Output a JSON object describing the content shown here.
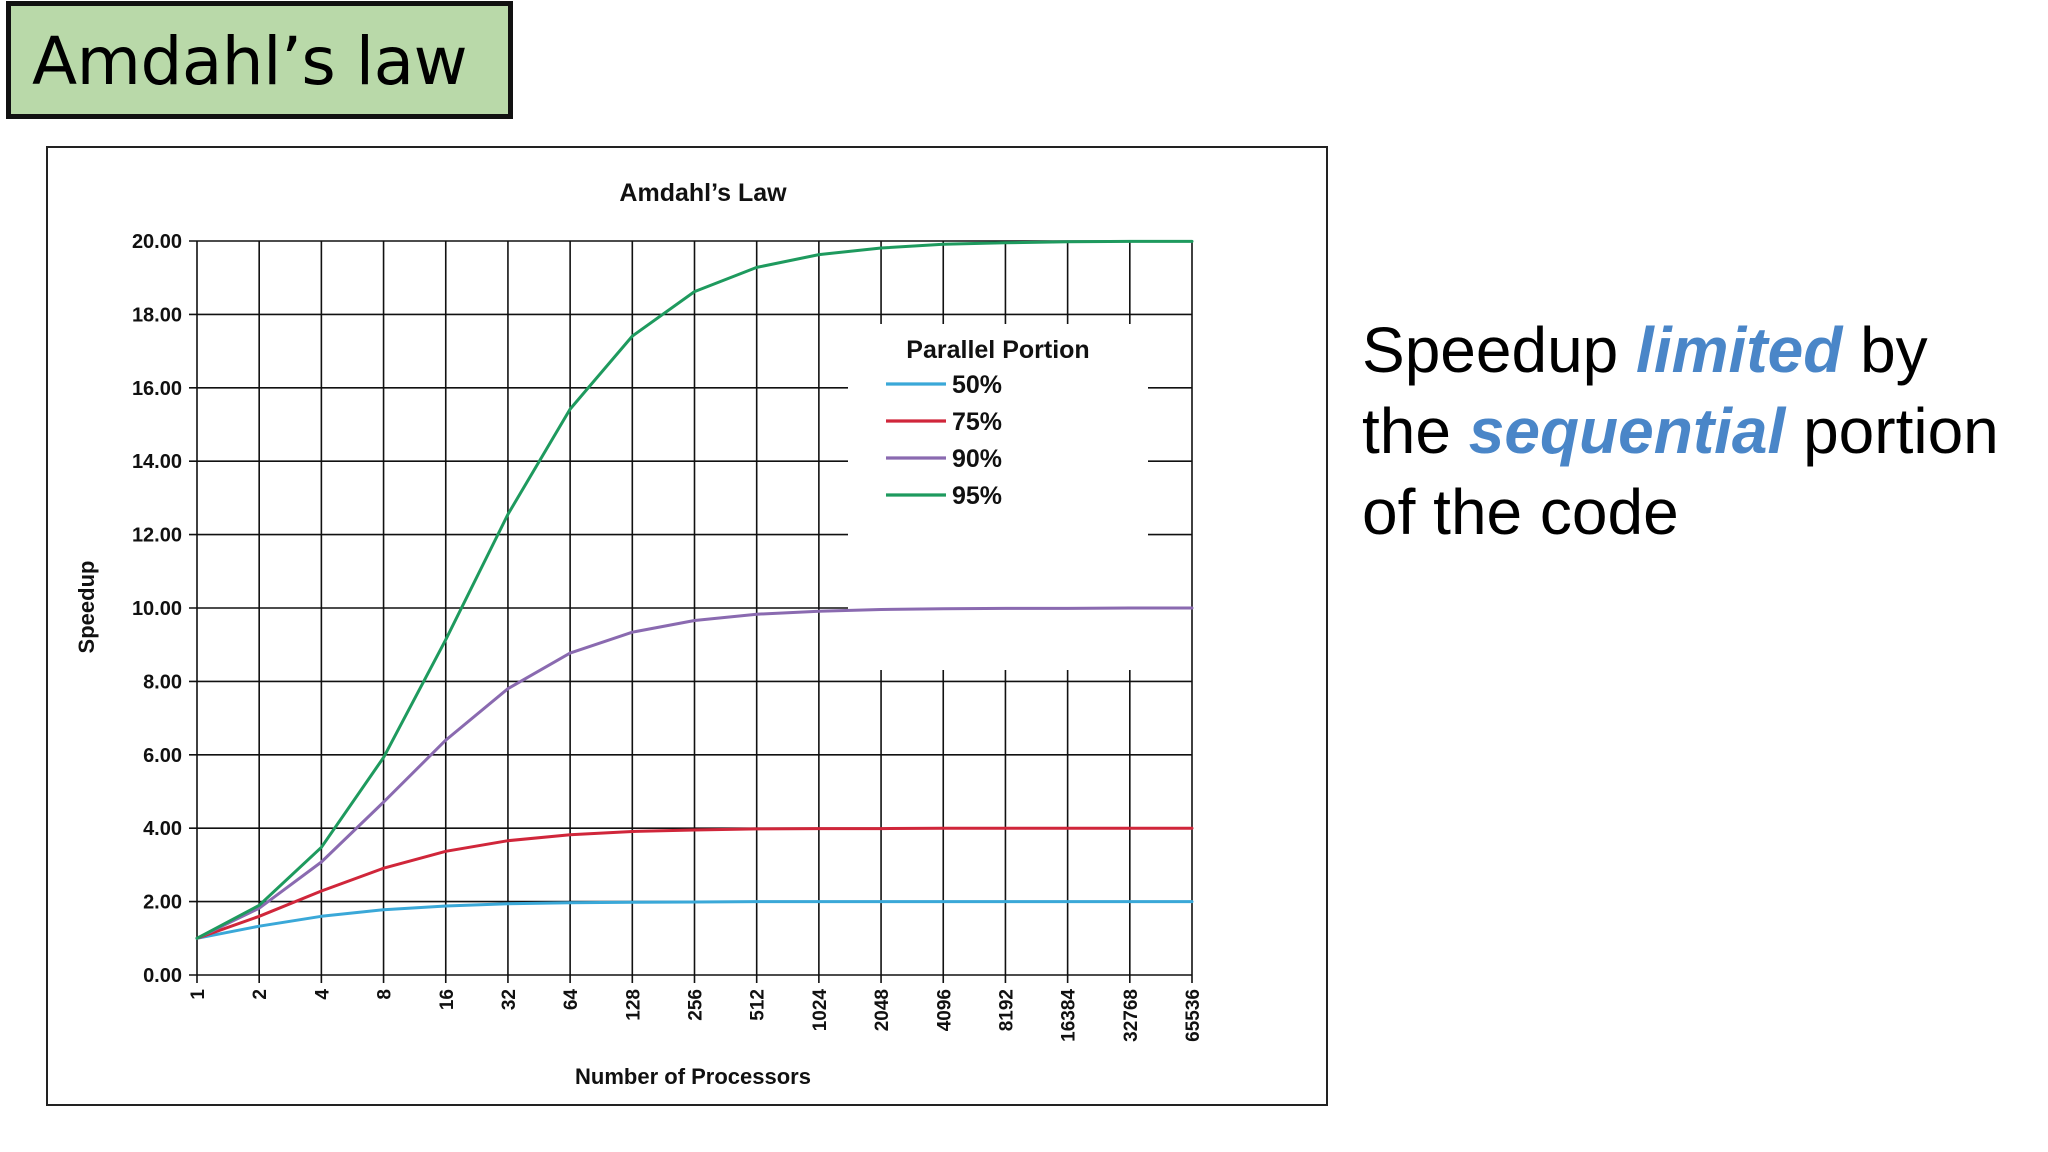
{
  "slide": {
    "title": "Amdahl’s law"
  },
  "side_text": {
    "part1": "Speedup ",
    "emphasis1": "limited",
    "part2": " by the ",
    "emphasis2": "sequential",
    "part3": " portion of the code",
    "emphasis_color": "#4a86c8"
  },
  "chart_data": {
    "type": "line",
    "title": "Amdahl’s Law",
    "xlabel": "Number of Processors",
    "ylabel": "Speedup",
    "x": [
      "1",
      "2",
      "4",
      "8",
      "16",
      "32",
      "64",
      "128",
      "256",
      "512",
      "1024",
      "2048",
      "4096",
      "8192",
      "16384",
      "32768",
      "65536"
    ],
    "y_ticks": [
      "0.00",
      "2.00",
      "4.00",
      "6.00",
      "8.00",
      "10.00",
      "12.00",
      "14.00",
      "16.00",
      "18.00",
      "20.00"
    ],
    "ylim": [
      0,
      20
    ],
    "x_scale": "log2",
    "grid": true,
    "legend": {
      "title": "Parallel Portion",
      "placement": "upper-right"
    },
    "series": [
      {
        "name": "50%",
        "color": "#3aa8d8",
        "values": [
          1.0,
          1.33,
          1.6,
          1.78,
          1.88,
          1.94,
          1.97,
          1.98,
          1.99,
          2.0,
          2.0,
          2.0,
          2.0,
          2.0,
          2.0,
          2.0,
          2.0
        ]
      },
      {
        "name": "75%",
        "color": "#d0263a",
        "values": [
          1.0,
          1.6,
          2.29,
          2.91,
          3.37,
          3.66,
          3.82,
          3.91,
          3.95,
          3.98,
          3.99,
          3.99,
          4.0,
          4.0,
          4.0,
          4.0,
          4.0
        ]
      },
      {
        "name": "90%",
        "color": "#8a6ab0",
        "values": [
          1.0,
          1.82,
          3.08,
          4.71,
          6.4,
          7.8,
          8.77,
          9.34,
          9.66,
          9.83,
          9.91,
          9.96,
          9.98,
          9.99,
          9.99,
          10.0,
          10.0
        ]
      },
      {
        "name": "95%",
        "color": "#1e9a5e",
        "values": [
          1.0,
          1.9,
          3.48,
          5.93,
          9.14,
          12.55,
          15.42,
          17.41,
          18.62,
          19.28,
          19.63,
          19.81,
          19.91,
          19.95,
          19.98,
          19.99,
          19.99
        ]
      }
    ]
  }
}
